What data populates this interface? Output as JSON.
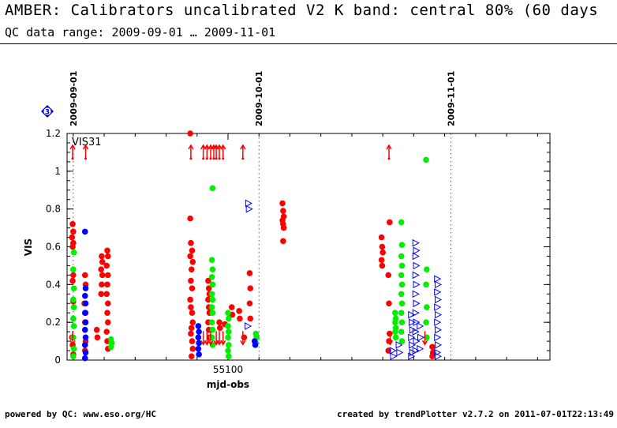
{
  "header": {
    "title": "AMBER: Calibrators uncalibrated V2 K band: central 80% (60 days",
    "subtitle": "QC data range: 2009-09-01 … 2009-11-01"
  },
  "footer": {
    "left": "powered by QC: www.eso.org/HC",
    "right": "created by trendPlotter v2.7.2 on 2011-07-01T22:13:49"
  },
  "badge": {
    "label": "3",
    "color": "#0000cc",
    "icon": "diamond-icon"
  },
  "colors": {
    "red": "#ff0000",
    "green": "#00ee00",
    "blue": "#0000ff",
    "axis": "#000000"
  },
  "chart_data": {
    "type": "scatter",
    "panel_label": "VIS31",
    "xlabel": "mjd-obs",
    "ylabel": "VIS",
    "xlim": [
      55074,
      55152
    ],
    "ylim": [
      0,
      1.2
    ],
    "x_ticks": [
      55100
    ],
    "y_ticks": [
      0,
      0.2,
      0.4,
      0.6,
      0.8,
      1,
      1.2
    ],
    "y_tick_labels": [
      "0",
      "0.2",
      "0.4",
      "0.6",
      "0.8",
      "1",
      "1.2"
    ],
    "date_markers": [
      {
        "mjd": 55075,
        "label": "2009-09-01"
      },
      {
        "mjd": 55105,
        "label": "2009-10-01"
      },
      {
        "mjd": 55136,
        "label": "2009-11-01"
      }
    ],
    "marker_types": {
      "circle": "filled circle",
      "triangle": "open triangle",
      "arrow": "out-of-range arrow"
    },
    "series": [
      {
        "color": "red",
        "marker": "circle",
        "points": [
          [
            55074.9,
            0.72
          ],
          [
            55075.0,
            0.68
          ],
          [
            55074.8,
            0.65
          ],
          [
            55075.0,
            0.62
          ],
          [
            55074.9,
            0.6
          ],
          [
            55075.0,
            0.45
          ],
          [
            55074.9,
            0.42
          ],
          [
            55075.0,
            0.31
          ],
          [
            55074.8,
            0.12
          ],
          [
            55074.9,
            0.08
          ],
          [
            55075.0,
            0.03
          ],
          [
            55076.9,
            0.45
          ],
          [
            55077.0,
            0.4
          ],
          [
            55076.8,
            0.3
          ],
          [
            55077.0,
            0.25
          ],
          [
            55076.9,
            0.2
          ],
          [
            55077.0,
            0.1
          ],
          [
            55076.9,
            0.05
          ],
          [
            55078.8,
            0.16
          ],
          [
            55078.9,
            0.12
          ],
          [
            55079.6,
            0.55
          ],
          [
            55079.7,
            0.52
          ],
          [
            55079.5,
            0.48
          ],
          [
            55079.7,
            0.45
          ],
          [
            55079.6,
            0.4
          ],
          [
            55079.5,
            0.35
          ],
          [
            55080.5,
            0.58
          ],
          [
            55080.6,
            0.55
          ],
          [
            55080.4,
            0.5
          ],
          [
            55080.6,
            0.45
          ],
          [
            55080.5,
            0.4
          ],
          [
            55080.4,
            0.35
          ],
          [
            55080.6,
            0.3
          ],
          [
            55080.5,
            0.25
          ],
          [
            55080.6,
            0.2
          ],
          [
            55080.4,
            0.15
          ],
          [
            55080.5,
            0.1
          ],
          [
            55080.6,
            0.06
          ],
          [
            55093.9,
            1.2
          ],
          [
            55093.9,
            0.75
          ],
          [
            55094.0,
            0.62
          ],
          [
            55094.2,
            0.58
          ],
          [
            55093.9,
            0.55
          ],
          [
            55094.3,
            0.52
          ],
          [
            55094.1,
            0.48
          ],
          [
            55094.0,
            0.42
          ],
          [
            55094.2,
            0.38
          ],
          [
            55093.9,
            0.32
          ],
          [
            55094.0,
            0.28
          ],
          [
            55094.2,
            0.25
          ],
          [
            55094.3,
            0.2
          ],
          [
            55094.1,
            0.17
          ],
          [
            55094.0,
            0.14
          ],
          [
            55094.2,
            0.1
          ],
          [
            55094.3,
            0.06
          ],
          [
            55094.1,
            0.02
          ],
          [
            55096.8,
            0.42
          ],
          [
            55096.9,
            0.38
          ],
          [
            55097.0,
            0.35
          ],
          [
            55096.8,
            0.32
          ],
          [
            55096.9,
            0.28
          ],
          [
            55097.0,
            0.25
          ],
          [
            55096.8,
            0.2
          ],
          [
            55096.9,
            0.16
          ],
          [
            55097.0,
            0.12
          ],
          [
            55098.6,
            0.2
          ],
          [
            55098.7,
            0.17
          ],
          [
            55099.5,
            0.19
          ],
          [
            55100.6,
            0.28
          ],
          [
            55100.7,
            0.24
          ],
          [
            55101.8,
            0.26
          ],
          [
            55101.9,
            0.22
          ],
          [
            55102.6,
            0.12
          ],
          [
            55103.5,
            0.46
          ],
          [
            55103.6,
            0.38
          ],
          [
            55103.5,
            0.3
          ],
          [
            55103.6,
            0.22
          ],
          [
            55108.8,
            0.83
          ],
          [
            55108.9,
            0.79
          ],
          [
            55109.0,
            0.76
          ],
          [
            55108.8,
            0.74
          ],
          [
            55108.9,
            0.72
          ],
          [
            55109.0,
            0.7
          ],
          [
            55108.9,
            0.63
          ],
          [
            55124.8,
            0.65
          ],
          [
            55124.9,
            0.6
          ],
          [
            55125.0,
            0.57
          ],
          [
            55124.8,
            0.53
          ],
          [
            55124.9,
            0.5
          ],
          [
            55126.1,
            0.73
          ],
          [
            55125.9,
            0.45
          ],
          [
            55126.0,
            0.3
          ],
          [
            55126.1,
            0.14
          ],
          [
            55126.0,
            0.1
          ],
          [
            55125.9,
            0.05
          ],
          [
            55133.0,
            0.07
          ],
          [
            55133.1,
            0.04
          ],
          [
            55133.0,
            0.02
          ]
        ]
      },
      {
        "color": "green",
        "marker": "circle",
        "points": [
          [
            55075.1,
            0.57
          ],
          [
            55075.0,
            0.48
          ],
          [
            55075.1,
            0.38
          ],
          [
            55075.0,
            0.32
          ],
          [
            55075.1,
            0.28
          ],
          [
            55075.0,
            0.22
          ],
          [
            55075.1,
            0.18
          ],
          [
            55075.0,
            0.12
          ],
          [
            55075.1,
            0.06
          ],
          [
            55075.0,
            0.02
          ],
          [
            55081.1,
            0.11
          ],
          [
            55081.2,
            0.09
          ],
          [
            55081.1,
            0.07
          ],
          [
            55097.5,
            0.91
          ],
          [
            55097.4,
            0.53
          ],
          [
            55097.5,
            0.48
          ],
          [
            55097.4,
            0.44
          ],
          [
            55097.5,
            0.4
          ],
          [
            55097.4,
            0.35
          ],
          [
            55097.5,
            0.32
          ],
          [
            55097.4,
            0.28
          ],
          [
            55097.5,
            0.25
          ],
          [
            55097.4,
            0.2
          ],
          [
            55097.5,
            0.16
          ],
          [
            55097.4,
            0.12
          ],
          [
            55097.5,
            0.08
          ],
          [
            55100.0,
            0.25
          ],
          [
            55100.1,
            0.22
          ],
          [
            55100.0,
            0.18
          ],
          [
            55100.1,
            0.15
          ],
          [
            55100.0,
            0.12
          ],
          [
            55100.1,
            0.08
          ],
          [
            55100.0,
            0.05
          ],
          [
            55100.1,
            0.02
          ],
          [
            55104.5,
            0.14
          ],
          [
            55104.6,
            0.12
          ],
          [
            55104.5,
            0.09
          ],
          [
            55127.0,
            0.25
          ],
          [
            55127.1,
            0.22
          ],
          [
            55127.0,
            0.2
          ],
          [
            55127.1,
            0.17
          ],
          [
            55127.0,
            0.15
          ],
          [
            55127.1,
            0.12
          ],
          [
            55128.0,
            0.73
          ],
          [
            55128.1,
            0.61
          ],
          [
            55128.0,
            0.55
          ],
          [
            55128.1,
            0.5
          ],
          [
            55128.0,
            0.45
          ],
          [
            55128.1,
            0.4
          ],
          [
            55128.0,
            0.35
          ],
          [
            55128.1,
            0.3
          ],
          [
            55128.0,
            0.25
          ],
          [
            55128.1,
            0.2
          ],
          [
            55128.0,
            0.15
          ],
          [
            55128.1,
            0.1
          ],
          [
            55132.0,
            1.06
          ],
          [
            55132.1,
            0.48
          ],
          [
            55132.0,
            0.4
          ],
          [
            55132.1,
            0.28
          ],
          [
            55132.0,
            0.2
          ],
          [
            55132.1,
            0.12
          ]
        ]
      },
      {
        "color": "blue",
        "marker": "circle",
        "points": [
          [
            55076.9,
            0.68
          ],
          [
            55077.0,
            0.38
          ],
          [
            55076.9,
            0.34
          ],
          [
            55077.0,
            0.3
          ],
          [
            55076.9,
            0.25
          ],
          [
            55077.0,
            0.2
          ],
          [
            55076.9,
            0.16
          ],
          [
            55077.0,
            0.12
          ],
          [
            55076.9,
            0.08
          ],
          [
            55077.0,
            0.04
          ],
          [
            55076.9,
            0.01
          ],
          [
            55095.2,
            0.18
          ],
          [
            55095.3,
            0.15
          ],
          [
            55095.2,
            0.12
          ],
          [
            55095.3,
            0.09
          ],
          [
            55095.2,
            0.06
          ],
          [
            55095.3,
            0.03
          ],
          [
            55104.3,
            0.1
          ],
          [
            55104.4,
            0.08
          ]
        ]
      },
      {
        "color": "blue",
        "marker": "triangle",
        "points": [
          [
            55103.3,
            0.83
          ],
          [
            55103.4,
            0.8
          ],
          [
            55103.2,
            0.18
          ],
          [
            55126.6,
            0.05
          ],
          [
            55126.7,
            0.02
          ],
          [
            55127.6,
            0.08
          ],
          [
            55127.7,
            0.04
          ],
          [
            55129.6,
            0.24
          ],
          [
            55129.7,
            0.2
          ],
          [
            55129.8,
            0.16
          ],
          [
            55129.6,
            0.12
          ],
          [
            55129.7,
            0.08
          ],
          [
            55129.8,
            0.04
          ],
          [
            55129.6,
            0.02
          ],
          [
            55130.3,
            0.62
          ],
          [
            55130.4,
            0.58
          ],
          [
            55130.3,
            0.55
          ],
          [
            55130.4,
            0.5
          ],
          [
            55130.3,
            0.45
          ],
          [
            55130.4,
            0.4
          ],
          [
            55130.3,
            0.35
          ],
          [
            55130.4,
            0.3
          ],
          [
            55130.3,
            0.25
          ],
          [
            55130.4,
            0.2
          ],
          [
            55130.3,
            0.15
          ],
          [
            55130.4,
            0.1
          ],
          [
            55130.3,
            0.05
          ],
          [
            55131.0,
            0.18
          ],
          [
            55131.1,
            0.12
          ],
          [
            55131.0,
            0.06
          ],
          [
            55133.8,
            0.43
          ],
          [
            55133.9,
            0.4
          ],
          [
            55133.8,
            0.36
          ],
          [
            55133.9,
            0.32
          ],
          [
            55133.8,
            0.28
          ],
          [
            55133.9,
            0.24
          ],
          [
            55133.8,
            0.2
          ],
          [
            55133.9,
            0.16
          ],
          [
            55133.8,
            0.12
          ],
          [
            55133.9,
            0.08
          ],
          [
            55133.8,
            0.04
          ],
          [
            55133.9,
            0.02
          ]
        ]
      },
      {
        "color": "red",
        "marker": "arrow",
        "points": [
          [
            55074.9,
            1.1
          ],
          [
            55077.0,
            1.1
          ],
          [
            55094.0,
            1.1
          ],
          [
            55096.0,
            1.1
          ],
          [
            55096.6,
            1.1
          ],
          [
            55097.2,
            1.1
          ],
          [
            55097.7,
            1.1
          ],
          [
            55098.1,
            1.1
          ],
          [
            55098.6,
            1.1
          ],
          [
            55099.2,
            1.1
          ],
          [
            55102.4,
            1.1
          ],
          [
            55126.0,
            1.1
          ],
          [
            55074.9,
            0.12
          ],
          [
            55096.0,
            0.12
          ],
          [
            55096.6,
            0.12
          ],
          [
            55097.2,
            0.12
          ],
          [
            55098.1,
            0.12
          ],
          [
            55098.6,
            0.12
          ],
          [
            55099.2,
            0.12
          ],
          [
            55102.4,
            0.12
          ],
          [
            55126.2,
            0.12
          ],
          [
            55131.8,
            0.12
          ]
        ]
      }
    ]
  }
}
